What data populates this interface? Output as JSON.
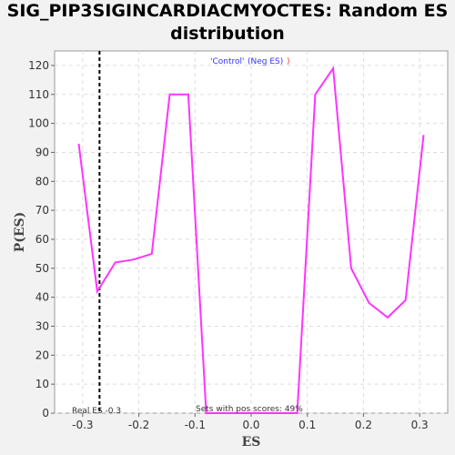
{
  "chart_data": {
    "type": "line",
    "title_lines": [
      "SIG_PIP3SIGINCARDIACMYOCTES: Random ES",
      "distribution"
    ],
    "xlabel": "ES",
    "ylabel": "P(ES)",
    "xlim": [
      -0.35,
      0.35
    ],
    "ylim": [
      0,
      125
    ],
    "xticks": [
      -0.3,
      -0.2,
      -0.1,
      0.0,
      0.1,
      0.2,
      0.3
    ],
    "xtick_labels": [
      "-0.3",
      "-0.2",
      "-0.1",
      "0.0",
      "0.1",
      "0.2",
      "0.3"
    ],
    "yticks": [
      0,
      10,
      20,
      30,
      40,
      50,
      60,
      70,
      80,
      90,
      100,
      110,
      120
    ],
    "grid": true,
    "series": [
      {
        "color": "#ff33ff",
        "x": [
          -0.307,
          -0.274,
          -0.242,
          -0.209,
          -0.177,
          -0.145,
          -0.112,
          -0.08,
          -0.047,
          -0.015,
          0.018,
          0.05,
          0.082,
          0.114,
          0.146,
          0.178,
          0.21,
          0.243,
          0.275,
          0.307
        ],
        "y": [
          93,
          42,
          52,
          53,
          55,
          110,
          110,
          0,
          0,
          0,
          0,
          0,
          0,
          110,
          119,
          50,
          38,
          33,
          39,
          96
        ]
      }
    ],
    "real_es": -0.27,
    "annotations": {
      "legend_control": "'Control'",
      "legend_neg": "(Neg ES)",
      "legend_trailing": ")",
      "real_es_label": "Real ES -0.3",
      "pos_scores_label": "Sets with pos scores: 49%"
    },
    "colors": {
      "line": "#ff33ff",
      "legend_control": "#3333ff",
      "legend_neg": "#ff3333",
      "grid": "#dddddd"
    }
  }
}
